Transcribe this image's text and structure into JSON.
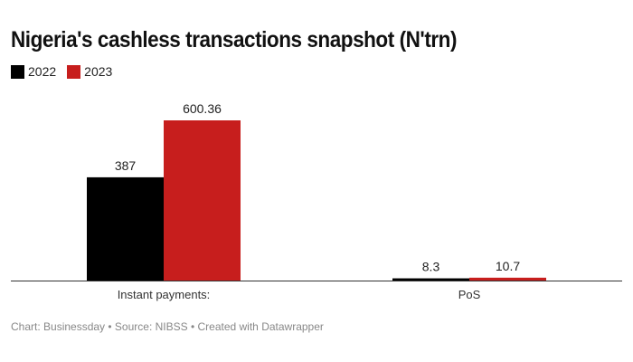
{
  "title": "Nigeria's cashless transactions snapshot (N'trn)",
  "footer": "Chart: Businessday • Source: NIBSS • Created with Datawrapper",
  "chart_data": {
    "type": "bar",
    "title": "Nigeria's cashless transactions snapshot (N'trn)",
    "categories": [
      "Instant payments:",
      "PoS"
    ],
    "series": [
      {
        "name": "2022",
        "color": "#000000",
        "values": [
          387,
          8.3
        ],
        "labels": [
          "387",
          "8.3"
        ]
      },
      {
        "name": "2023",
        "color": "#c71e1d",
        "values": [
          600.36,
          10.7
        ],
        "labels": [
          "600.36",
          "10.7"
        ]
      }
    ],
    "xlabel": "",
    "ylabel": "",
    "ylim": [
      0,
      600.36
    ],
    "legend": "top-left",
    "grid": false
  }
}
